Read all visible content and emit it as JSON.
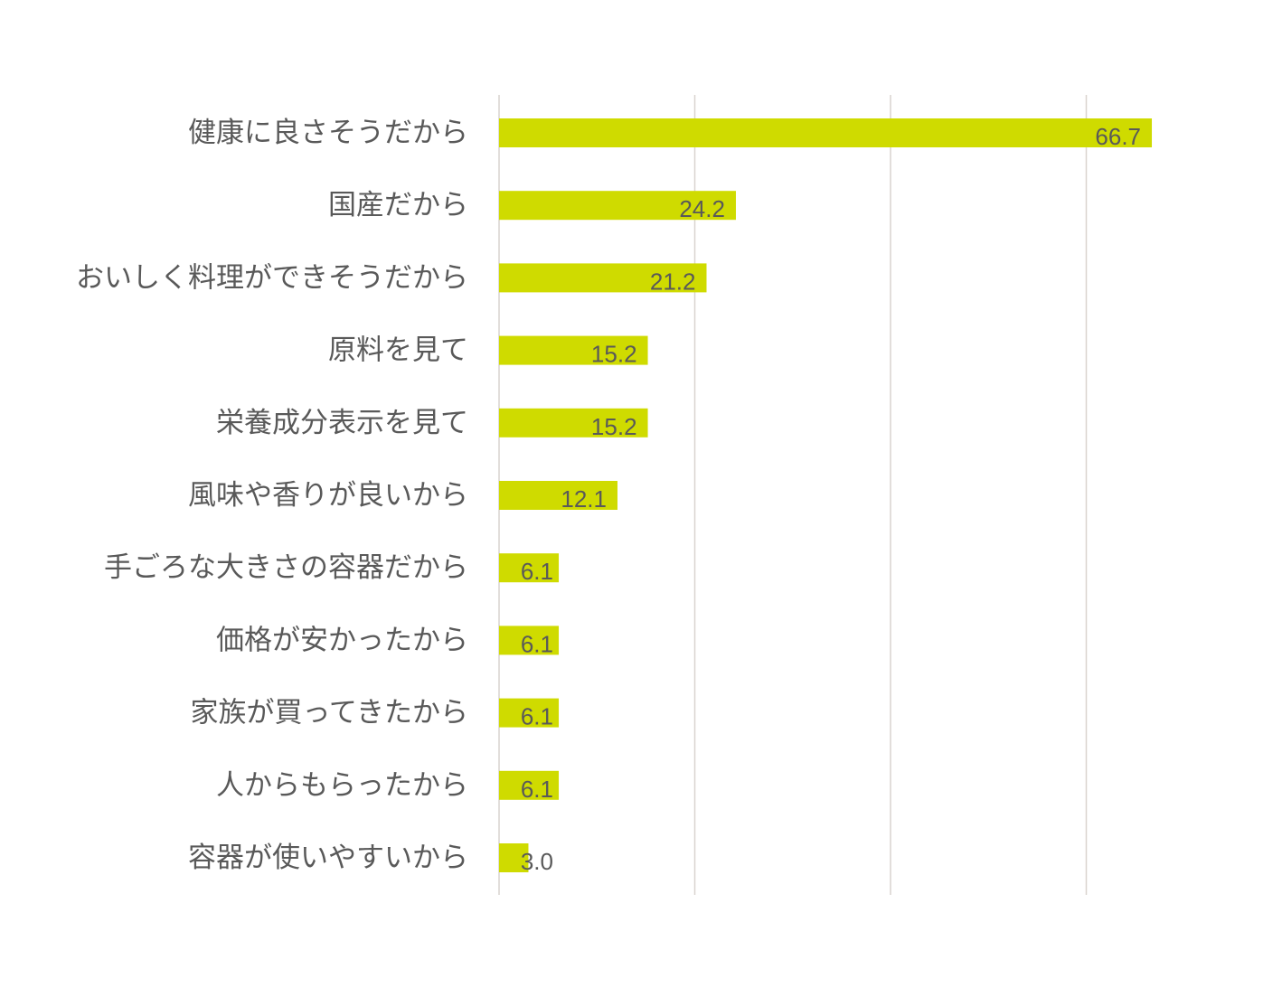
{
  "chart_data": {
    "type": "bar",
    "orientation": "horizontal",
    "categories": [
      "健康に良さそうだから",
      "国産だから",
      "おいしく料理ができそうだから",
      "原料を見て",
      "栄養成分表示を見て",
      "風味や香りが良いから",
      "手ごろな大きさの容器だから",
      "価格が安かったから",
      "家族が買ってきたから",
      "人からもらったから",
      "容器が使いやすいから"
    ],
    "values": [
      66.7,
      24.2,
      21.2,
      15.2,
      15.2,
      12.1,
      6.1,
      6.1,
      6.1,
      6.1,
      3.0
    ],
    "value_labels": [
      "66.7",
      "24.2",
      "21.2",
      "15.2",
      "15.2",
      "12.1",
      "6.1",
      "6.1",
      "6.1",
      "6.1",
      "3.0"
    ],
    "xlim": [
      0,
      80
    ],
    "gridlines": [
      0,
      20,
      40,
      60
    ],
    "tick_labels_shown": false,
    "grid": true,
    "legend": "none",
    "bar_color": "#CFDB00",
    "gridline_color": "#D9D4CF",
    "text_color": "#595959"
  }
}
